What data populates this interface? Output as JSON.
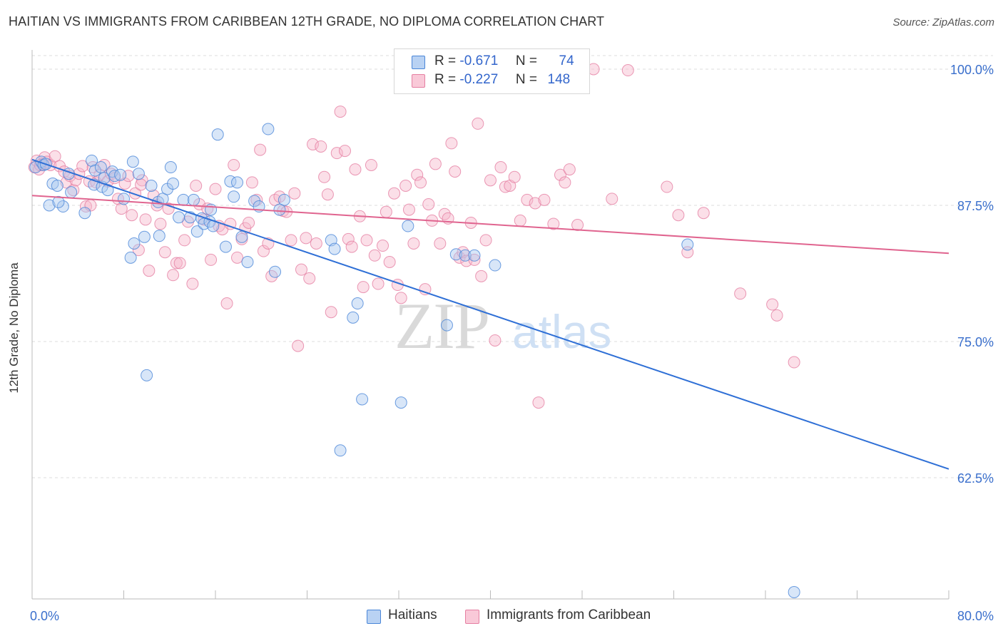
{
  "header": {
    "title": "HAITIAN VS IMMIGRANTS FROM CARIBBEAN 12TH GRADE, NO DIPLOMA CORRELATION CHART",
    "source": "Source: ZipAtlas.com"
  },
  "stats_legend": [
    {
      "r_label": "R =",
      "r_value": "-0.671",
      "n_label": "N =",
      "n_value": "74"
    },
    {
      "r_label": "R =",
      "r_value": "-0.227",
      "n_label": "N =",
      "n_value": "148"
    }
  ],
  "watermark": {
    "part1": "ZIP",
    "part2": "atlas"
  },
  "colors": {
    "haitians_fill": "#a9c7f0",
    "haitians_stroke": "#4a86d8",
    "haitians_line": "#2e6fd6",
    "caribbean_fill": "#f6b8cc",
    "caribbean_stroke": "#e57fa2",
    "caribbean_line": "#e0648f",
    "tick_label": "#3a6fcc",
    "grid": "#dddddd"
  },
  "chart_data": {
    "type": "scatter",
    "title": "HAITIAN VS IMMIGRANTS FROM CARIBBEAN 12TH GRADE, NO DIPLOMA CORRELATION CHART",
    "xlabel": "",
    "ylabel": "12th Grade, No Diploma",
    "xlim": [
      0,
      80
    ],
    "ylim": [
      50.0,
      102.0
    ],
    "x_tick_labels": [
      "0.0%",
      "80.0%"
    ],
    "y_ticks": [
      62.5,
      75.0,
      87.5,
      100.0
    ],
    "y_tick_labels": [
      "62.5%",
      "75.0%",
      "87.5%",
      "100.0%"
    ],
    "grid": "horizontal dashed",
    "legend_position": "bottom",
    "series": [
      {
        "name": "Haitians",
        "r": -0.671,
        "n": 74,
        "trend": {
          "x": [
            0,
            80
          ],
          "y": [
            91.7,
            63.3
          ]
        },
        "points": [
          [
            0.3,
            91.0
          ],
          [
            0.8,
            91.5
          ],
          [
            1.0,
            91.2
          ],
          [
            1.5,
            87.5
          ],
          [
            1.8,
            89.5
          ],
          [
            2.2,
            89.3
          ],
          [
            2.7,
            87.4
          ],
          [
            3.2,
            90.4
          ],
          [
            3.4,
            88.7
          ],
          [
            4.6,
            86.8
          ],
          [
            5.2,
            91.6
          ],
          [
            5.4,
            89.4
          ],
          [
            5.5,
            90.7
          ],
          [
            6.0,
            91.0
          ],
          [
            6.1,
            89.2
          ],
          [
            6.3,
            90.0
          ],
          [
            6.6,
            88.9
          ],
          [
            7.0,
            90.6
          ],
          [
            7.2,
            90.2
          ],
          [
            7.7,
            90.3
          ],
          [
            8.0,
            88.1
          ],
          [
            8.6,
            82.7
          ],
          [
            8.9,
            84.0
          ],
          [
            8.8,
            91.5
          ],
          [
            9.3,
            90.4
          ],
          [
            9.8,
            84.6
          ],
          [
            10.0,
            71.9
          ],
          [
            10.4,
            89.3
          ],
          [
            11.0,
            87.8
          ],
          [
            11.1,
            84.7
          ],
          [
            11.4,
            88.1
          ],
          [
            11.8,
            89.0
          ],
          [
            12.1,
            91.0
          ],
          [
            12.3,
            89.5
          ],
          [
            12.8,
            86.4
          ],
          [
            13.2,
            88.0
          ],
          [
            13.8,
            86.4
          ],
          [
            14.1,
            88.0
          ],
          [
            14.4,
            85.1
          ],
          [
            14.8,
            86.3
          ],
          [
            15.0,
            85.8
          ],
          [
            15.5,
            86.0
          ],
          [
            15.6,
            87.1
          ],
          [
            15.8,
            85.6
          ],
          [
            16.2,
            94.0
          ],
          [
            16.9,
            83.7
          ],
          [
            17.3,
            89.7
          ],
          [
            17.6,
            88.3
          ],
          [
            17.9,
            89.6
          ],
          [
            18.3,
            84.6
          ],
          [
            18.8,
            82.3
          ],
          [
            19.4,
            87.9
          ],
          [
            19.8,
            87.4
          ],
          [
            20.6,
            94.5
          ],
          [
            21.2,
            81.4
          ],
          [
            22.0,
            88.0
          ],
          [
            21.6,
            87.1
          ],
          [
            26.1,
            84.3
          ],
          [
            26.4,
            83.5
          ],
          [
            28.0,
            77.2
          ],
          [
            28.4,
            78.5
          ],
          [
            28.8,
            69.7
          ],
          [
            32.2,
            69.4
          ],
          [
            32.8,
            85.6
          ],
          [
            36.2,
            76.5
          ],
          [
            37.0,
            83.0
          ],
          [
            37.8,
            82.9
          ],
          [
            38.6,
            82.9
          ],
          [
            40.4,
            82.0
          ],
          [
            57.2,
            83.9
          ],
          [
            66.5,
            52.0
          ],
          [
            26.9,
            65.0
          ],
          [
            2.3,
            87.8
          ],
          [
            1.2,
            91.3
          ]
        ]
      },
      {
        "name": "Immigrants from Caribbean",
        "r": -0.227,
        "n": 148,
        "trend": {
          "x": [
            0,
            80
          ],
          "y": [
            88.4,
            83.1
          ]
        },
        "points": [
          [
            0.2,
            91.0
          ],
          [
            0.4,
            91.6
          ],
          [
            0.6,
            90.8
          ],
          [
            0.9,
            91.3
          ],
          [
            1.1,
            91.9
          ],
          [
            1.3,
            91.5
          ],
          [
            1.6,
            91.2
          ],
          [
            2.0,
            92.0
          ],
          [
            2.4,
            91.1
          ],
          [
            2.8,
            90.6
          ],
          [
            3.0,
            89.6
          ],
          [
            3.3,
            90.2
          ],
          [
            3.6,
            88.9
          ],
          [
            3.8,
            89.8
          ],
          [
            4.1,
            90.4
          ],
          [
            4.4,
            91.1
          ],
          [
            4.7,
            87.4
          ],
          [
            5.0,
            89.7
          ],
          [
            5.3,
            91.0
          ],
          [
            5.6,
            89.6
          ],
          [
            5.9,
            90.3
          ],
          [
            6.3,
            91.2
          ],
          [
            6.6,
            89.7
          ],
          [
            6.9,
            90.4
          ],
          [
            7.2,
            90.0
          ],
          [
            7.5,
            88.1
          ],
          [
            7.8,
            87.2
          ],
          [
            8.1,
            89.5
          ],
          [
            8.4,
            90.2
          ],
          [
            8.7,
            86.6
          ],
          [
            9.0,
            88.6
          ],
          [
            9.3,
            83.4
          ],
          [
            9.6,
            89.8
          ],
          [
            9.9,
            86.2
          ],
          [
            10.2,
            81.5
          ],
          [
            10.6,
            88.4
          ],
          [
            10.9,
            87.5
          ],
          [
            11.2,
            85.8
          ],
          [
            11.6,
            83.2
          ],
          [
            11.9,
            87.2
          ],
          [
            12.3,
            81.1
          ],
          [
            12.6,
            82.2
          ],
          [
            12.9,
            82.2
          ],
          [
            13.3,
            84.3
          ],
          [
            13.6,
            86.0
          ],
          [
            14.0,
            80.3
          ],
          [
            14.3,
            89.3
          ],
          [
            14.6,
            87.6
          ],
          [
            15.0,
            86.2
          ],
          [
            15.3,
            87.2
          ],
          [
            15.6,
            82.5
          ],
          [
            16.0,
            89.0
          ],
          [
            16.3,
            85.6
          ],
          [
            16.6,
            85.3
          ],
          [
            17.0,
            78.5
          ],
          [
            17.3,
            85.8
          ],
          [
            17.6,
            91.2
          ],
          [
            17.9,
            82.7
          ],
          [
            18.3,
            84.4
          ],
          [
            18.6,
            85.4
          ],
          [
            18.9,
            85.9
          ],
          [
            19.2,
            89.6
          ],
          [
            19.6,
            88.0
          ],
          [
            19.9,
            92.6
          ],
          [
            20.2,
            83.3
          ],
          [
            20.6,
            84.0
          ],
          [
            20.9,
            81.0
          ],
          [
            21.2,
            88.0
          ],
          [
            21.6,
            88.3
          ],
          [
            21.9,
            87.0
          ],
          [
            22.2,
            86.9
          ],
          [
            22.6,
            84.3
          ],
          [
            22.9,
            88.6
          ],
          [
            23.2,
            74.6
          ],
          [
            23.5,
            81.6
          ],
          [
            23.9,
            84.5
          ],
          [
            24.2,
            80.8
          ],
          [
            24.5,
            93.1
          ],
          [
            24.8,
            84.0
          ],
          [
            25.2,
            92.9
          ],
          [
            25.5,
            90.1
          ],
          [
            25.8,
            88.5
          ],
          [
            26.1,
            77.7
          ],
          [
            26.6,
            92.3
          ],
          [
            26.9,
            96.1
          ],
          [
            27.3,
            92.5
          ],
          [
            27.6,
            84.4
          ],
          [
            27.9,
            83.7
          ],
          [
            28.2,
            90.8
          ],
          [
            28.6,
            86.5
          ],
          [
            28.9,
            80.0
          ],
          [
            29.2,
            84.3
          ],
          [
            29.6,
            91.2
          ],
          [
            29.9,
            82.9
          ],
          [
            30.2,
            80.3
          ],
          [
            30.6,
            83.8
          ],
          [
            30.9,
            86.9
          ],
          [
            31.2,
            82.3
          ],
          [
            31.6,
            88.6
          ],
          [
            31.9,
            80.2
          ],
          [
            32.2,
            79.0
          ],
          [
            32.6,
            89.3
          ],
          [
            32.9,
            87.1
          ],
          [
            33.3,
            84.0
          ],
          [
            33.6,
            90.3
          ],
          [
            33.9,
            89.6
          ],
          [
            34.3,
            79.8
          ],
          [
            34.6,
            87.6
          ],
          [
            34.9,
            86.1
          ],
          [
            35.2,
            91.3
          ],
          [
            35.6,
            84.0
          ],
          [
            36.0,
            86.7
          ],
          [
            36.3,
            86.3
          ],
          [
            36.6,
            93.2
          ],
          [
            36.9,
            90.6
          ],
          [
            37.3,
            82.7
          ],
          [
            37.6,
            83.2
          ],
          [
            37.9,
            82.4
          ],
          [
            38.3,
            85.9
          ],
          [
            38.6,
            82.5
          ],
          [
            38.9,
            95.0
          ],
          [
            39.2,
            81.0
          ],
          [
            39.6,
            84.3
          ],
          [
            40.0,
            89.8
          ],
          [
            40.4,
            75.1
          ],
          [
            40.9,
            91.0
          ],
          [
            41.3,
            89.2
          ],
          [
            41.7,
            89.3
          ],
          [
            42.1,
            90.1
          ],
          [
            42.6,
            86.1
          ],
          [
            43.2,
            88.0
          ],
          [
            43.9,
            87.7
          ],
          [
            44.2,
            69.4
          ],
          [
            44.7,
            88.0
          ],
          [
            45.5,
            85.8
          ],
          [
            46.1,
            90.3
          ],
          [
            46.5,
            89.6
          ],
          [
            46.9,
            90.8
          ],
          [
            47.6,
            85.7
          ],
          [
            49.0,
            100.0
          ],
          [
            50.6,
            88.1
          ],
          [
            52.0,
            99.9
          ],
          [
            55.4,
            89.2
          ],
          [
            56.4,
            86.6
          ],
          [
            57.2,
            83.2
          ],
          [
            58.6,
            86.8
          ],
          [
            61.8,
            79.4
          ],
          [
            64.6,
            78.4
          ],
          [
            65.0,
            77.4
          ],
          [
            66.5,
            73.1
          ],
          [
            5.1,
            87.5
          ],
          [
            0.7,
            91.2
          ],
          [
            9.5,
            89.4
          ]
        ]
      }
    ]
  },
  "bottom_legend": [
    {
      "label": "Haitians"
    },
    {
      "label": "Immigrants from Caribbean"
    }
  ]
}
